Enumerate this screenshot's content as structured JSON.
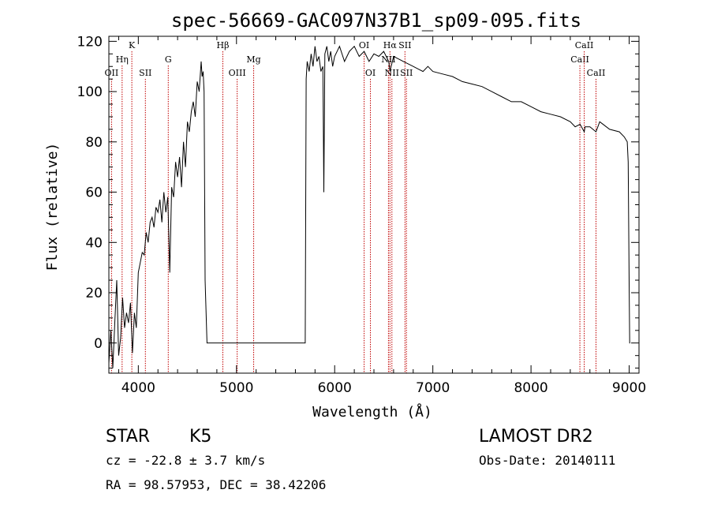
{
  "chart_data": {
    "type": "line",
    "title": "spec-56669-GAC097N37B1_sp09-095.fits",
    "xlabel": "Wavelength (Å)",
    "ylabel": "Flux (relative)",
    "xlim": [
      3700,
      9100
    ],
    "ylim": [
      -12,
      122
    ],
    "xticks": [
      "4000",
      "5000",
      "6000",
      "7000",
      "8000",
      "9000"
    ],
    "yticks": [
      "0",
      "20",
      "40",
      "60",
      "80",
      "100",
      "120"
    ],
    "series": [
      {
        "name": "flux",
        "x": [
          3700,
          3720,
          3740,
          3760,
          3780,
          3800,
          3820,
          3840,
          3860,
          3880,
          3900,
          3920,
          3940,
          3960,
          3980,
          4000,
          4020,
          4040,
          4060,
          4080,
          4100,
          4120,
          4140,
          4160,
          4180,
          4200,
          4220,
          4240,
          4260,
          4280,
          4300,
          4320,
          4340,
          4360,
          4380,
          4400,
          4420,
          4440,
          4460,
          4480,
          4500,
          4520,
          4540,
          4560,
          4580,
          4600,
          4620,
          4640,
          4650,
          4660,
          4670,
          4680,
          4700,
          5000,
          5500,
          5700,
          5710,
          5720,
          5740,
          5760,
          5780,
          5800,
          5820,
          5840,
          5860,
          5880,
          5890,
          5900,
          5920,
          5940,
          5960,
          5980,
          6000,
          6050,
          6100,
          6150,
          6200,
          6250,
          6300,
          6350,
          6400,
          6450,
          6500,
          6550,
          6563,
          6600,
          6650,
          6700,
          6750,
          6800,
          6850,
          6900,
          6950,
          7000,
          7100,
          7200,
          7300,
          7400,
          7500,
          7600,
          7700,
          7800,
          7900,
          8000,
          8100,
          8200,
          8300,
          8400,
          8450,
          8500,
          8542,
          8550,
          8600,
          8662,
          8700,
          8800,
          8900,
          8950,
          8980,
          8990,
          9000,
          9005,
          9010
        ],
        "y": [
          -8,
          5,
          -10,
          8,
          25,
          -5,
          2,
          18,
          6,
          12,
          8,
          16,
          -4,
          12,
          6,
          28,
          32,
          36,
          35,
          44,
          40,
          48,
          50,
          46,
          54,
          52,
          57,
          48,
          60,
          52,
          58,
          28,
          62,
          58,
          72,
          66,
          74,
          62,
          80,
          70,
          88,
          84,
          92,
          96,
          90,
          104,
          100,
          112,
          106,
          108,
          100,
          25,
          0,
          0,
          0,
          0,
          105,
          112,
          108,
          115,
          110,
          118,
          112,
          114,
          108,
          110,
          60,
          115,
          118,
          112,
          116,
          110,
          114,
          118,
          112,
          116,
          118,
          114,
          116,
          112,
          115,
          114,
          116,
          112,
          108,
          114,
          113,
          112,
          111,
          110,
          109,
          108,
          110,
          108,
          107,
          106,
          104,
          103,
          102,
          100,
          98,
          96,
          96,
          94,
          92,
          91,
          90,
          88,
          86,
          87,
          84,
          86,
          86,
          84,
          88,
          85,
          84,
          82,
          80,
          72,
          20,
          0,
          0
        ]
      }
    ],
    "lines": [
      {
        "label": "OII",
        "wl": 3727,
        "row": 3
      },
      {
        "label": "Hη",
        "wl": 3835,
        "row": 2
      },
      {
        "label": "K",
        "wl": 3934,
        "row": 1
      },
      {
        "label": "SII",
        "wl": 4072,
        "row": 3
      },
      {
        "label": "G",
        "wl": 4305,
        "row": 2
      },
      {
        "label": "Hβ",
        "wl": 4861,
        "row": 1
      },
      {
        "label": "OIII",
        "wl": 5007,
        "row": 3
      },
      {
        "label": "Mg",
        "wl": 5175,
        "row": 2
      },
      {
        "label": "OI",
        "wl": 6300,
        "row": 1
      },
      {
        "label": "OI",
        "wl": 6364,
        "row": 3
      },
      {
        "label": "Hα",
        "wl": 6563,
        "row": 1
      },
      {
        "label": "NII",
        "wl": 6548,
        "row": 2
      },
      {
        "label": "NII",
        "wl": 6583,
        "row": 3
      },
      {
        "label": "SII",
        "wl": 6716,
        "row": 1
      },
      {
        "label": "SII",
        "wl": 6731,
        "row": 3
      },
      {
        "label": "CaII",
        "wl": 8498,
        "row": 2
      },
      {
        "label": "CaII",
        "wl": 8542,
        "row": 1
      },
      {
        "label": "CaII",
        "wl": 8662,
        "row": 3
      }
    ]
  },
  "info": {
    "class_label": "STAR",
    "subclass": "K5",
    "survey": "LAMOST DR2",
    "cz": "cz = -22.8 ± 3.7 km/s",
    "obs_date": "Obs-Date: 20140111",
    "coords": "RA =  98.57953, DEC =  38.42206"
  }
}
